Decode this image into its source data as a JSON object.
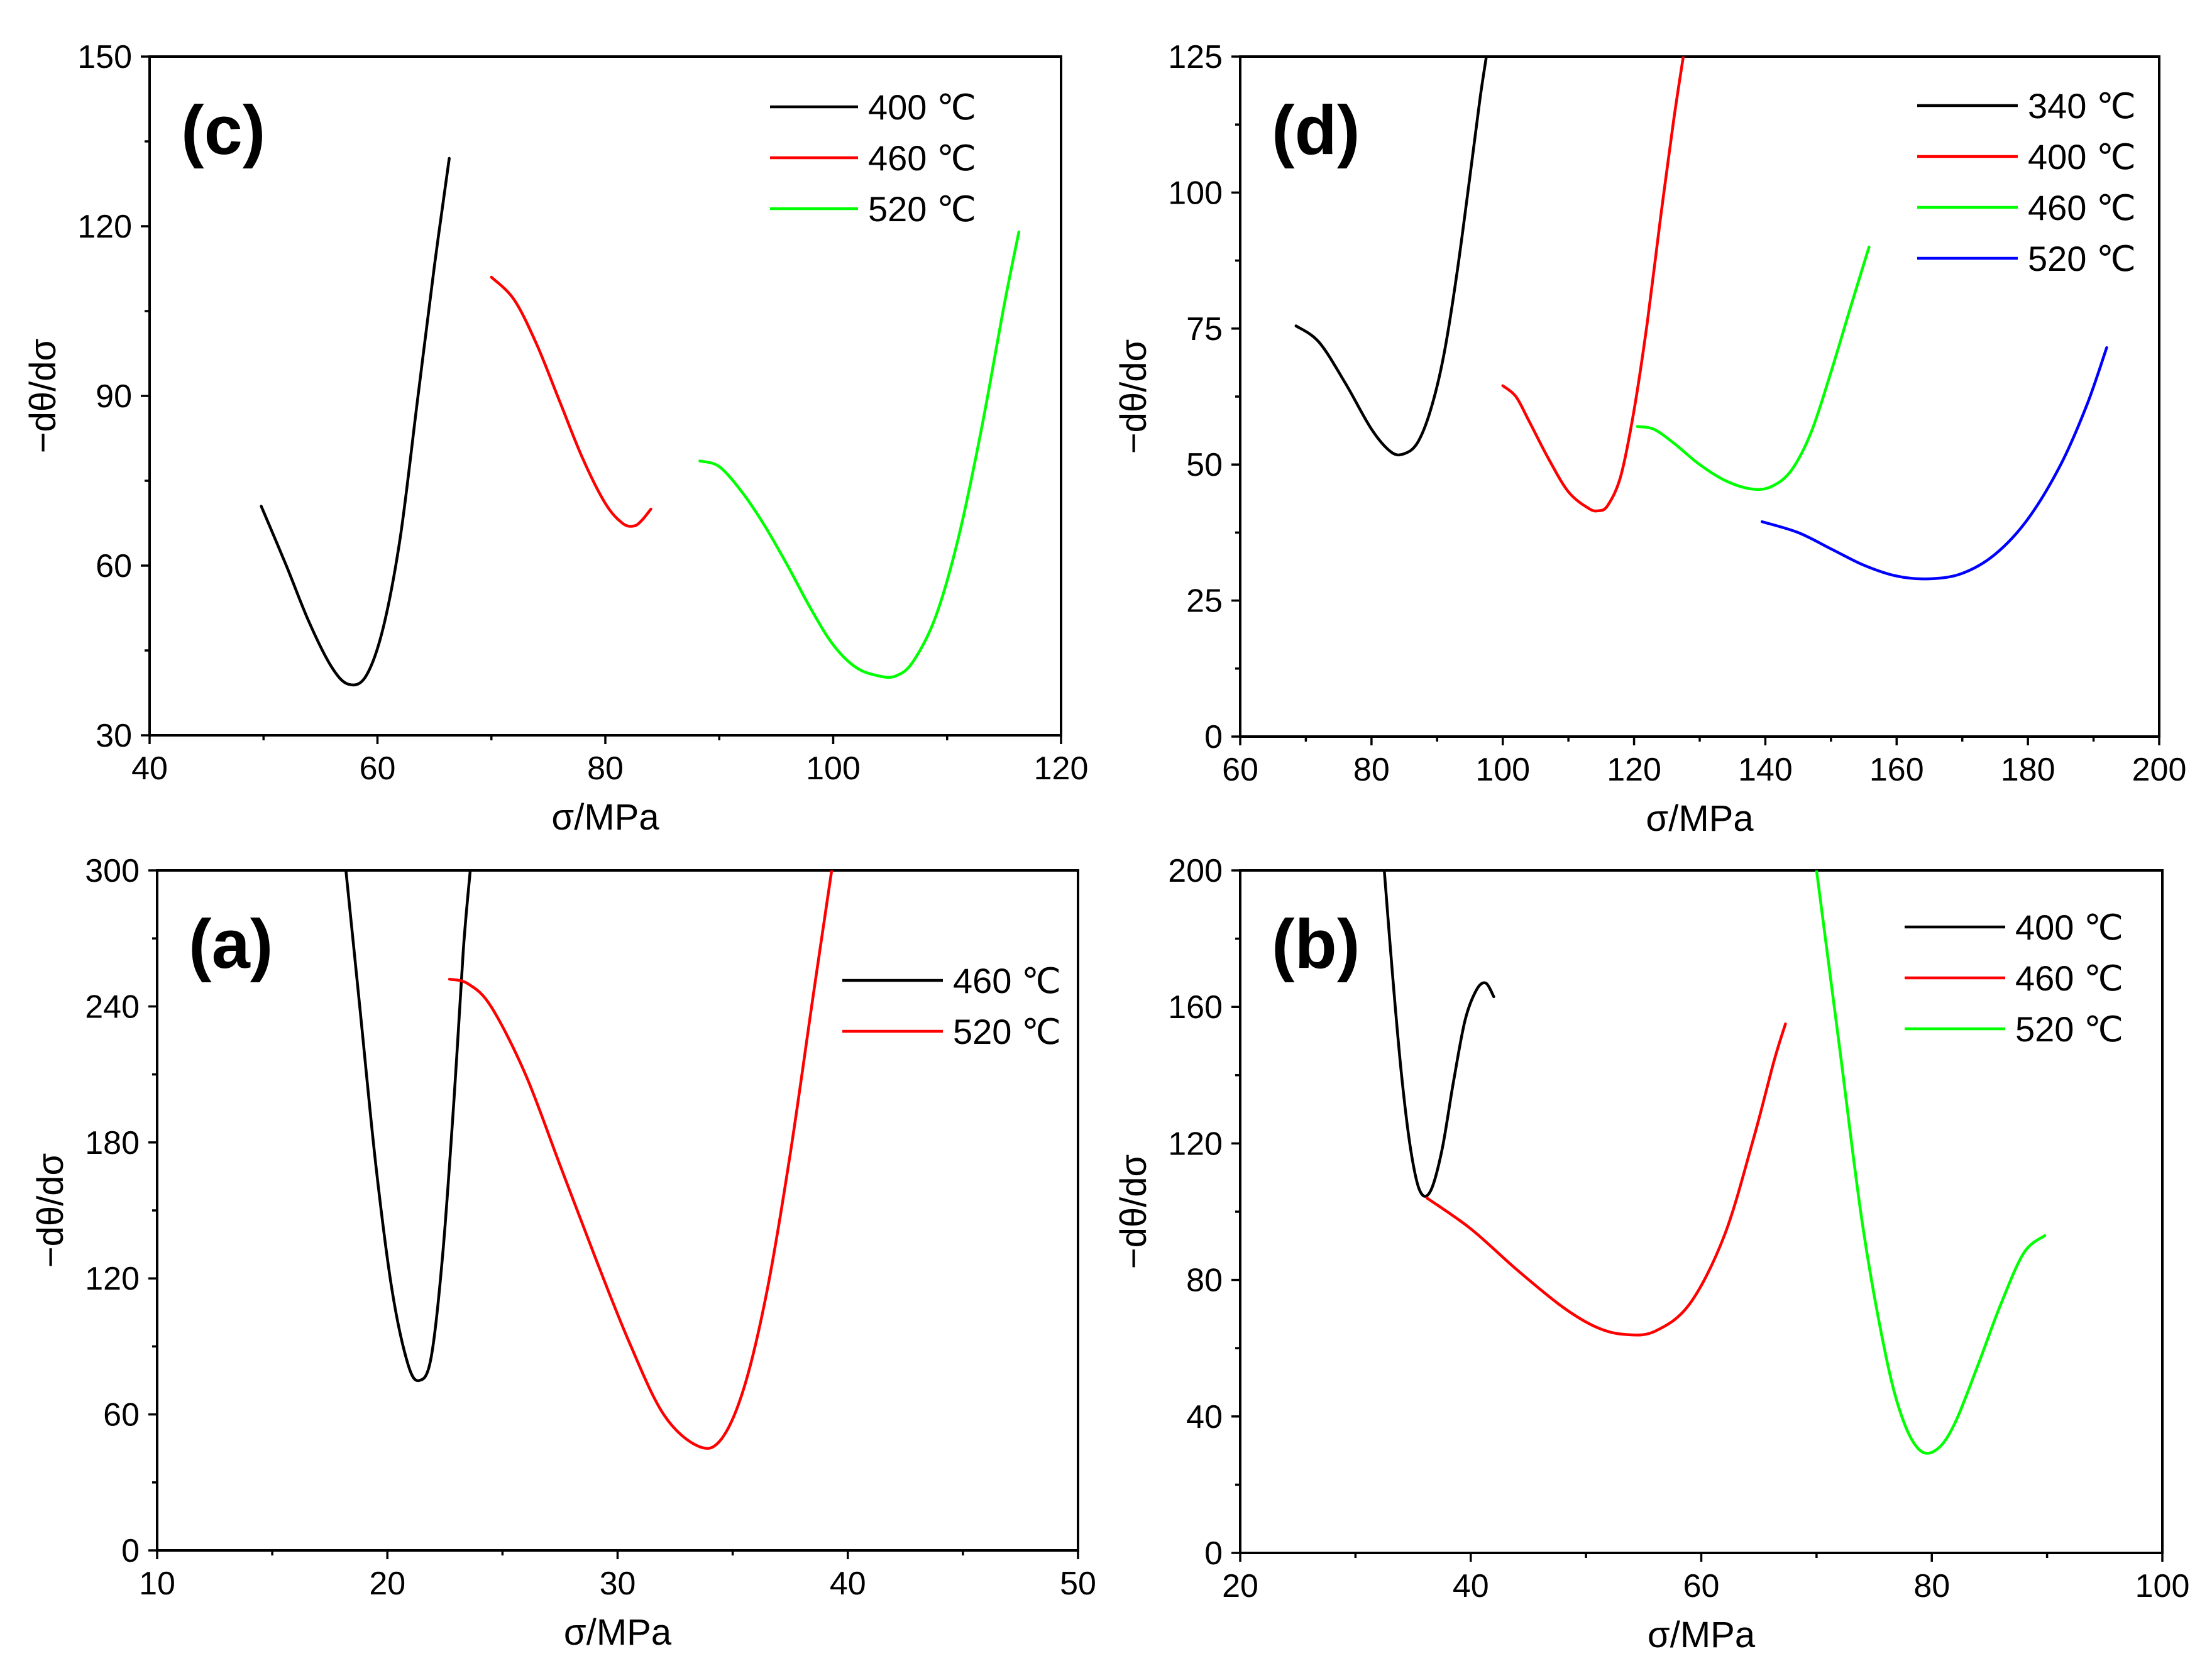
{
  "chart_data": [
    {
      "panel": "c",
      "type": "line",
      "label": "(c)",
      "xlabel": "σ/MPa",
      "ylabel": "−dθ/dσ",
      "xlim": [
        40,
        120
      ],
      "ylim": [
        30,
        150
      ],
      "xticks": [
        40,
        60,
        80,
        100,
        120
      ],
      "yticks": [
        30,
        60,
        90,
        120,
        150
      ],
      "legend_position": "top-right",
      "series": [
        {
          "name": "400 ℃",
          "color": "#000000",
          "x": [
            49.8,
            52,
            54,
            56,
            57.5,
            59,
            60.5,
            62,
            63.5,
            65,
            66.3
          ],
          "y": [
            70.5,
            60,
            50,
            42,
            39,
            40.5,
            49,
            65,
            89,
            113,
            132
          ]
        },
        {
          "name": "460 ℃",
          "color": "#ff0000",
          "x": [
            70,
            72,
            74,
            76,
            78,
            80,
            81.5,
            82.5,
            83.2,
            84
          ],
          "y": [
            111,
            107,
            99,
            89,
            79,
            71,
            67.5,
            67,
            68,
            70
          ]
        },
        {
          "name": "520 ℃",
          "color": "#00ff00",
          "x": [
            88.3,
            90,
            92,
            94,
            96,
            98,
            100,
            102,
            104,
            105.5,
            107,
            109,
            111,
            113,
            115,
            116.3
          ],
          "y": [
            78.5,
            77.5,
            73,
            67,
            60,
            52.5,
            46,
            42,
            40.5,
            40.5,
            43,
            51,
            65,
            84,
            106,
            119
          ]
        }
      ]
    },
    {
      "panel": "d",
      "type": "line",
      "label": "(d)",
      "xlabel": "σ/MPa",
      "ylabel": "−dθ/dσ",
      "xlim": [
        60,
        200
      ],
      "ylim": [
        0,
        125
      ],
      "xticks": [
        60,
        80,
        100,
        120,
        140,
        160,
        180,
        200
      ],
      "yticks": [
        0,
        25,
        50,
        75,
        100,
        125
      ],
      "legend_position": "top-right",
      "series": [
        {
          "name": "340 ℃",
          "color": "#000000",
          "x": [
            68.5,
            72,
            76,
            80,
            83,
            85,
            87,
            89,
            91,
            93,
            95,
            96.5,
            97.5
          ],
          "y": [
            75.5,
            72.5,
            65,
            56.5,
            52.3,
            52,
            54,
            60,
            70,
            85,
            103,
            117,
            125
          ]
        },
        {
          "name": "400 ℃",
          "color": "#ff0000",
          "x": [
            100,
            102,
            104,
            107,
            110,
            113,
            114.5,
            116,
            118,
            120,
            122,
            124,
            126,
            127.5
          ],
          "y": [
            64.5,
            62.5,
            58,
            51,
            45,
            42,
            41.5,
            42.5,
            48,
            60,
            76,
            95,
            113,
            125
          ]
        },
        {
          "name": "460 ℃",
          "color": "#00ff00",
          "x": [
            120.5,
            123,
            126,
            130,
            134,
            138,
            141,
            144,
            147,
            150,
            153,
            155.8
          ],
          "y": [
            57,
            56.5,
            54,
            50,
            47,
            45.5,
            46,
            49,
            56,
            67,
            79,
            90
          ]
        },
        {
          "name": "520 ℃",
          "color": "#0000ff",
          "x": [
            139.5,
            145,
            150,
            155,
            160,
            165,
            170,
            175,
            180,
            185,
            189,
            192
          ],
          "y": [
            39.5,
            37.5,
            34.5,
            31.5,
            29.5,
            29,
            30,
            33.5,
            40,
            50,
            61,
            71.5
          ]
        }
      ]
    },
    {
      "panel": "a",
      "type": "line",
      "label": "(a)",
      "xlabel": "σ/MPa",
      "ylabel": "−dθ/dσ",
      "xlim": [
        10,
        50
      ],
      "ylim": [
        0,
        300
      ],
      "xticks": [
        10,
        20,
        30,
        40,
        50
      ],
      "yticks": [
        0,
        60,
        120,
        180,
        240,
        300
      ],
      "legend_position": "right",
      "series": [
        {
          "name": "460 ℃",
          "color": "#000000",
          "x": [
            18.2,
            18.8,
            19.5,
            20.2,
            20.9,
            21.4,
            21.9,
            22.4,
            22.9,
            23.3,
            23.6
          ],
          "y": [
            300,
            240,
            170,
            115,
            82,
            75,
            85,
            130,
            200,
            265,
            300
          ]
        },
        {
          "name": "520 ℃",
          "color": "#ff0000",
          "x": [
            22.7,
            23.5,
            24.5,
            26,
            27.5,
            29,
            30.5,
            32,
            33.5,
            34.5,
            35.5,
            36.5,
            37.5,
            38.5,
            39.3
          ],
          "y": [
            252,
            250,
            240,
            210,
            170,
            130,
            92,
            60,
            46,
            49,
            72,
            115,
            175,
            245,
            300
          ]
        }
      ]
    },
    {
      "panel": "b",
      "type": "line",
      "label": "(b)",
      "xlabel": "σ/MPa",
      "ylabel": "−dθ/dσ",
      "xlim": [
        20,
        100
      ],
      "ylim": [
        0,
        200
      ],
      "xticks": [
        20,
        40,
        60,
        80,
        100
      ],
      "yticks": [
        0,
        40,
        80,
        120,
        160,
        200
      ],
      "legend_position": "top-right",
      "series": [
        {
          "name": "400 ℃",
          "color": "#000000",
          "x": [
            32.5,
            33.2,
            34,
            34.8,
            35.6,
            36.5,
            37.5,
            38.5,
            39.5,
            40.5,
            41.3,
            42
          ],
          "y": [
            200,
            170,
            140,
            118,
            106,
            106,
            118,
            138,
            156,
            165,
            167,
            163
          ]
        },
        {
          "name": "460 ℃",
          "color": "#ff0000",
          "x": [
            36.2,
            40,
            44,
            48,
            51,
            53.5,
            56,
            59,
            62,
            64.5,
            66.3,
            67.3
          ],
          "y": [
            104,
            95,
            83,
            72,
            66,
            64,
            65,
            73,
            93,
            121,
            144,
            155
          ]
        },
        {
          "name": "520 ℃",
          "color": "#00ff00",
          "x": [
            70,
            72,
            74,
            76,
            77.5,
            79,
            80.5,
            82,
            84,
            86,
            88,
            89.8
          ],
          "y": [
            200,
            148,
            96,
            58,
            39,
            30,
            30.5,
            38,
            55,
            73,
            88,
            93
          ]
        }
      ]
    }
  ]
}
